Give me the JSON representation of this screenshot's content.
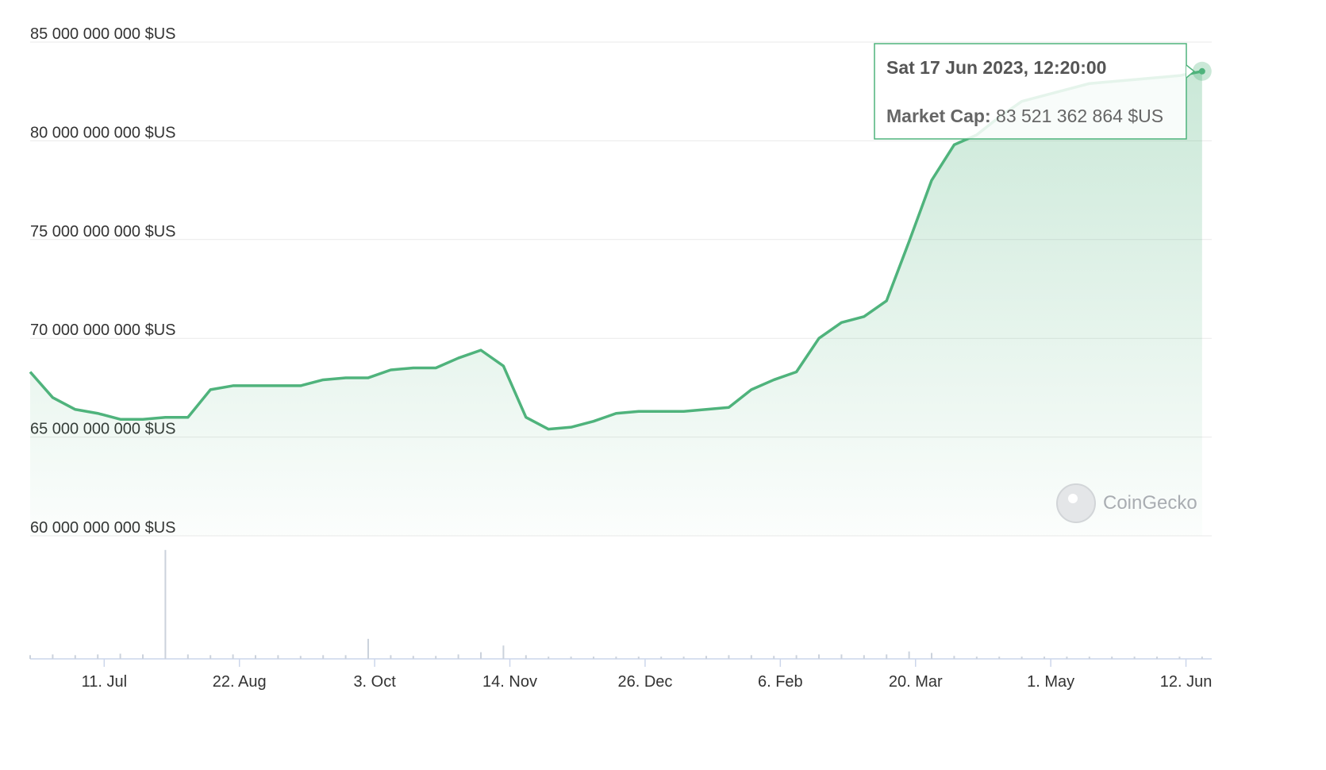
{
  "chart_data": {
    "type": "line",
    "x": [
      0,
      7,
      14,
      21,
      28,
      35,
      42,
      49,
      56,
      63,
      70,
      77,
      84,
      91,
      98,
      105,
      112,
      119,
      126,
      133,
      140,
      147,
      154,
      161,
      168,
      175,
      182,
      189,
      196,
      203,
      210,
      217,
      224,
      231,
      238,
      245,
      252,
      259,
      266,
      273,
      280,
      287,
      294,
      301,
      308,
      315,
      322,
      329,
      336,
      343,
      350,
      357,
      364
    ],
    "values": [
      68300000000,
      67000000000,
      66400000000,
      66200000000,
      65900000000,
      65900000000,
      66000000000,
      66000000000,
      67400000000,
      67600000000,
      67600000000,
      67600000000,
      67600000000,
      67900000000,
      68000000000,
      68000000000,
      68400000000,
      68500000000,
      68500000000,
      69000000000,
      69400000000,
      68600000000,
      66000000000,
      65400000000,
      65500000000,
      65800000000,
      66200000000,
      66300000000,
      66300000000,
      66300000000,
      66400000000,
      66500000000,
      67400000000,
      67900000000,
      68300000000,
      70000000000,
      70800000000,
      71100000000,
      71900000000,
      74900000000,
      78000000000,
      79800000000,
      80300000000,
      81200000000,
      82000000000,
      82300000000,
      82600000000,
      82900000000,
      83000000000,
      83100000000,
      83200000000,
      83300000000,
      83521362864
    ],
    "color": "#4fb37c",
    "xlim": [
      0,
      367
    ],
    "xticks": [
      {
        "value": 23,
        "label": "11. Jul"
      },
      {
        "value": 65,
        "label": "22. Aug"
      },
      {
        "value": 107,
        "label": "3. Oct"
      },
      {
        "value": 149,
        "label": "14. Nov"
      },
      {
        "value": 191,
        "label": "26. Dec"
      },
      {
        "value": 233,
        "label": "6. Feb"
      },
      {
        "value": 275,
        "label": "20. Mar"
      },
      {
        "value": 317,
        "label": "1. May"
      },
      {
        "value": 359,
        "label": "12. Jun"
      }
    ],
    "ylim": [
      60000000000,
      85000000000
    ],
    "yticks": [
      {
        "value": 60000000000,
        "label": "60 000 000 000 $US"
      },
      {
        "value": 65000000000,
        "label": "65 000 000 000 $US"
      },
      {
        "value": 70000000000,
        "label": "70 000 000 000 $US"
      },
      {
        "value": 75000000000,
        "label": "75 000 000 000 $US"
      },
      {
        "value": 80000000000,
        "label": "80 000 000 000 $US"
      },
      {
        "value": 85000000000,
        "label": "85 000 000 000 $US"
      }
    ],
    "grid": true,
    "volume": {
      "values": [
        500000000,
        600000000,
        500000000,
        600000000,
        700000000,
        600000000,
        14700000000,
        600000000,
        500000000,
        600000000,
        500000000,
        500000000,
        400000000,
        500000000,
        500000000,
        2700000000,
        500000000,
        400000000,
        400000000,
        600000000,
        900000000,
        1800000000,
        500000000,
        300000000,
        300000000,
        300000000,
        300000000,
        300000000,
        300000000,
        300000000,
        400000000,
        500000000,
        500000000,
        400000000,
        500000000,
        600000000,
        600000000,
        500000000,
        600000000,
        1000000000,
        800000000,
        400000000,
        300000000,
        300000000,
        300000000,
        300000000,
        300000000,
        300000000,
        300000000,
        300000000,
        300000000,
        300000000,
        300000000
      ],
      "ylim": [
        0,
        15000000000
      ],
      "color": "#cbd2dc"
    },
    "tooltip": {
      "date": "Sat 17 Jun 2023, 12:20:00",
      "label": "Market Cap:",
      "value": 83521362864,
      "value_label": "83 521 362 864 $US"
    },
    "watermark": "CoinGecko"
  }
}
